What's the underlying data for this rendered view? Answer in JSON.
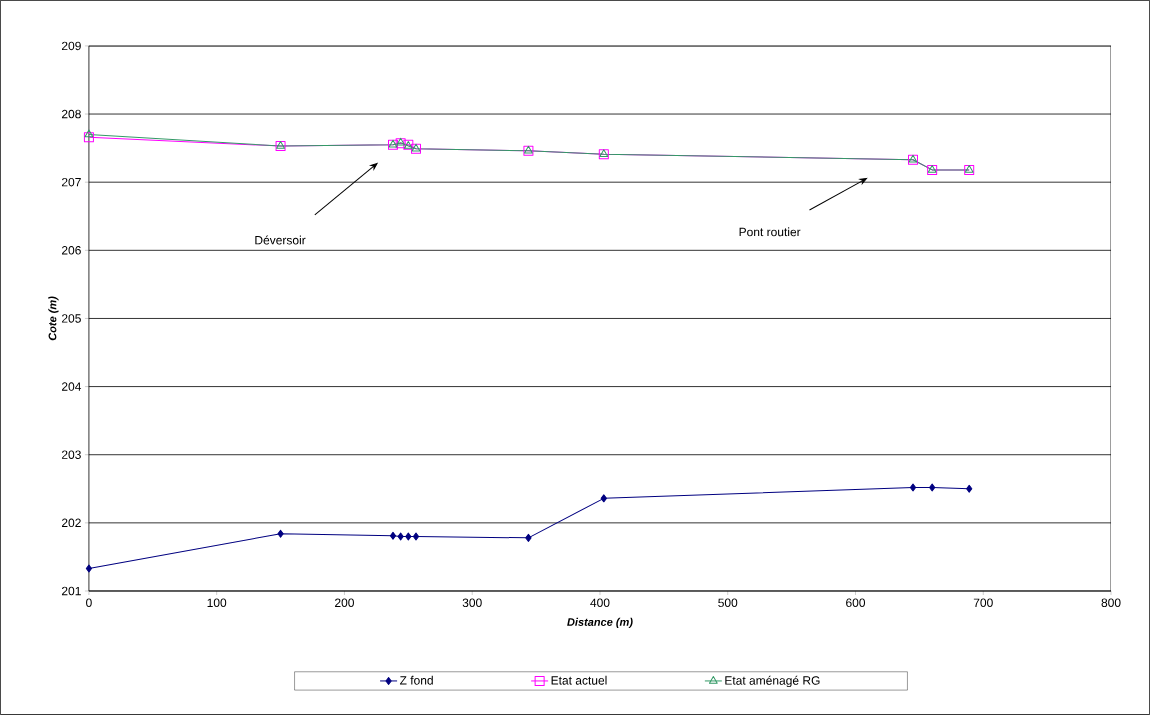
{
  "chart_data": {
    "type": "line",
    "xlabel": "Distance (m)",
    "ylabel": "Cote (m)",
    "x": [
      0,
      150,
      238,
      244,
      250,
      256,
      344,
      403,
      645,
      660,
      689
    ],
    "series": [
      {
        "name": "Z fond",
        "color": "#000080",
        "marker": "diamond",
        "values": [
          201.33,
          201.84,
          201.81,
          201.8,
          201.8,
          201.8,
          201.78,
          202.36,
          202.52,
          202.52,
          202.5
        ]
      },
      {
        "name": "Etat actuel",
        "color": "#ff00ff",
        "marker": "square",
        "values": [
          207.66,
          207.53,
          207.55,
          207.57,
          207.55,
          207.49,
          207.46,
          207.41,
          207.33,
          207.18,
          207.18
        ]
      },
      {
        "name": "Etat aménagé RG",
        "color": "#339966",
        "marker": "triangle",
        "values": [
          207.7,
          207.53,
          207.55,
          207.58,
          207.53,
          207.49,
          207.46,
          207.41,
          207.33,
          207.18,
          207.18
        ]
      }
    ],
    "xlim": [
      0,
      800
    ],
    "ylim": [
      201,
      209
    ],
    "xticks": [
      0,
      100,
      200,
      300,
      400,
      500,
      600,
      700,
      800
    ],
    "yticks": [
      201,
      202,
      203,
      204,
      205,
      206,
      207,
      208,
      209
    ],
    "grid": "y",
    "legend": "bottom",
    "annotations": [
      "Déversoir",
      "Pont routier"
    ]
  }
}
